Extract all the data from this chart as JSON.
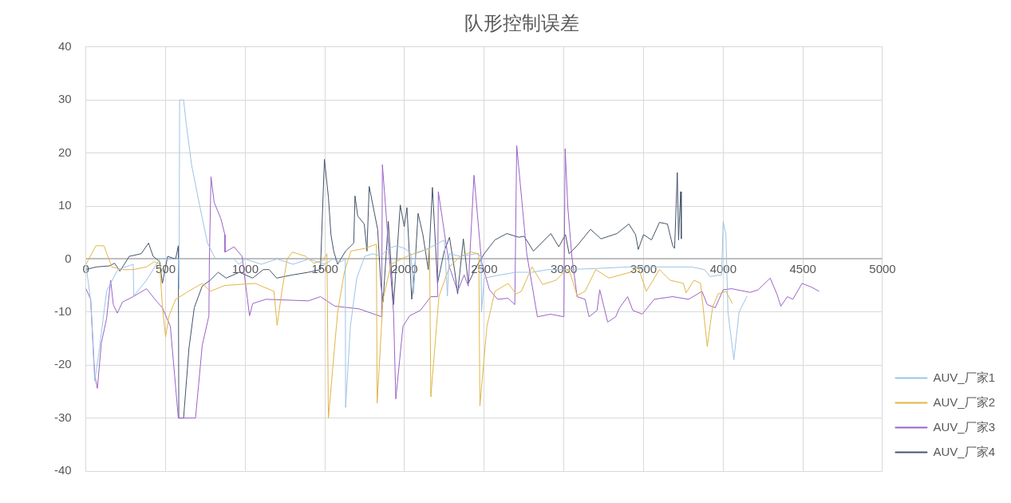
{
  "chart_data": {
    "type": "line",
    "title": "队形控制误差",
    "xlim": [
      0,
      5000
    ],
    "xticks": [
      0,
      500,
      1000,
      1500,
      2000,
      2500,
      3000,
      3500,
      4000,
      4500,
      5000
    ],
    "ylim": [
      -40,
      40
    ],
    "yticks": [
      -40,
      -30,
      -20,
      -10,
      0,
      10,
      20,
      30,
      40
    ],
    "grid": true,
    "legend": "right",
    "marker": "none",
    "line_style": "solid",
    "series": [
      {
        "name": "AUV_厂家1",
        "color": "#9dc3e6",
        "x": [
          0,
          30,
          55,
          80,
          130,
          200,
          297,
          300,
          380,
          463,
          580,
          585,
          588,
          613,
          630,
          663,
          713,
          763,
          813,
          880,
          930,
          960,
          1000,
          1100,
          1200,
          1300,
          1400,
          1500,
          1550,
          1600,
          1628,
          1630,
          1660,
          1700,
          1750,
          1800,
          1850,
          1900,
          1950,
          2000,
          2040,
          2057,
          2070,
          2150,
          2250,
          2269,
          2280,
          2350,
          2450,
          2480,
          2483,
          2500,
          2600,
          2700,
          2800,
          2900,
          3000,
          3200,
          3400,
          3600,
          3800,
          3883,
          3917,
          3990,
          4000,
          4017,
          4030,
          4067,
          4100,
          4150
        ],
        "values": [
          -1,
          -8,
          -23,
          -18,
          -6,
          -2,
          -1,
          -7,
          -4,
          0,
          0,
          -5.6,
          30,
          30,
          25.4,
          17.8,
          10.2,
          3,
          0,
          0,
          0,
          -1,
          0,
          -1,
          0,
          -1,
          0,
          -1,
          0,
          -0.5,
          0,
          -28,
          -12.7,
          -3.6,
          0.5,
          1,
          0.5,
          2,
          2.5,
          2,
          1,
          -6.6,
          1,
          2,
          3.6,
          -7,
          1,
          0.5,
          1,
          0.5,
          -10,
          -3.6,
          -3,
          -2.5,
          -2.5,
          -2,
          -2,
          -1.8,
          -1.5,
          -1.5,
          -1.5,
          -2,
          -3.3,
          -3,
          7.1,
          4.6,
          -10,
          -19,
          -10,
          -7
        ]
      },
      {
        "name": "AUV_厂家2",
        "color": "#e2b645",
        "x": [
          0,
          63,
          113,
          163,
          230,
          297,
          380,
          430,
          463,
          480,
          500,
          522,
          563,
          650,
          730,
          780,
          870,
          963,
          1063,
          1180,
          1200,
          1230,
          1263,
          1297,
          1380,
          1430,
          1488,
          1513,
          1522,
          1580,
          1622,
          1647,
          1664,
          1750,
          1823,
          1828,
          1865,
          1915,
          2000,
          2082,
          2157,
          2165,
          2216,
          2282,
          2350,
          2416,
          2466,
          2473,
          2517,
          2567,
          2650,
          2700,
          2733,
          2800,
          2867,
          2951,
          3000,
          3033,
          3083,
          3133,
          3200,
          3283,
          3417,
          3467,
          3517,
          3600,
          3667,
          3750,
          3767,
          3817,
          3858,
          3900,
          3933,
          3967,
          4017,
          4058
        ],
        "values": [
          -1,
          2.5,
          2.5,
          -1.5,
          -2,
          -2,
          -1.5,
          -0.5,
          -1,
          -9,
          -14.7,
          -10.7,
          -7.6,
          -6,
          -4.6,
          -6.1,
          -5,
          -4.8,
          -4.6,
          -6.1,
          -12.5,
          -6.1,
          0,
          1.3,
          0.5,
          -0.8,
          -0.3,
          1,
          -30,
          -10,
          -2.5,
          0,
          1.5,
          2,
          2.8,
          -27.2,
          -7.6,
          -1,
          0.3,
          1.3,
          2,
          -26,
          -7,
          -1.5,
          0.5,
          1.3,
          1,
          -27.7,
          -12.7,
          -6.1,
          -4.6,
          -6.6,
          -6.1,
          -1.5,
          -4.8,
          -4,
          -2.5,
          -2,
          -6.9,
          -6.1,
          -2,
          -3.6,
          -2.5,
          -1.5,
          -6.1,
          -2,
          -4,
          -4.6,
          -6.4,
          -4,
          -4.6,
          -16.5,
          -9.2,
          -6.6,
          -6.1,
          -8.4
        ]
      },
      {
        "name": "AUV_厂家3",
        "color": "#9b62c8",
        "x": [
          0,
          30,
          55,
          72,
          97,
          130,
          155,
          172,
          197,
          230,
          297,
          380,
          447,
          480,
          530,
          580,
          688,
          730,
          772,
          775,
          785,
          805,
          847,
          872,
          873,
          930,
          980,
          1027,
          1047,
          1130,
          1397,
          1472,
          1563,
          1714,
          1856,
          1861,
          1931,
          1945,
          1990,
          2032,
          2099,
          2165,
          2207,
          2212,
          2282,
          2333,
          2374,
          2400,
          2436,
          2483,
          2533,
          2584,
          2650,
          2692,
          2704,
          2767,
          2834,
          2917,
          3000,
          3008,
          3025,
          3050,
          3083,
          3133,
          3158,
          3208,
          3225,
          3275,
          3325,
          3350,
          3400,
          3433,
          3492,
          3567,
          3683,
          3783,
          3867,
          3900,
          3950,
          4000,
          4053,
          4170,
          4220,
          4295,
          4337,
          4362,
          4403,
          4437,
          4495,
          4553,
          4603
        ],
        "values": [
          -5.6,
          -7.6,
          -21.9,
          -24.4,
          -15.8,
          -11.2,
          -4,
          -8.6,
          -10.2,
          -8.1,
          -7.1,
          -5.6,
          -8.1,
          -9.2,
          -12.7,
          -30,
          -30,
          -16.3,
          -10.7,
          0,
          15.5,
          10.7,
          7.6,
          4.6,
          1.3,
          2.3,
          0.5,
          -10.7,
          -8.4,
          -7.6,
          -7.9,
          -7.1,
          -8.9,
          -9.4,
          -10.9,
          17.8,
          -10.2,
          -26.4,
          -12.7,
          -10.7,
          -9.7,
          -7.1,
          -7.1,
          12.7,
          -1.5,
          -6.1,
          -3,
          -5.1,
          15.8,
          -0.5,
          -5.8,
          -7.6,
          -7.4,
          -8.6,
          21.4,
          1,
          -10.9,
          -10.4,
          -10.9,
          20.8,
          9.7,
          0.5,
          -7.1,
          -7.6,
          -10.9,
          -9.7,
          -5.8,
          -11.9,
          -10.9,
          -9.2,
          -7.1,
          -9.7,
          -10.4,
          -7.6,
          -7.1,
          -7.6,
          -6.1,
          -8.6,
          -9.2,
          -5.8,
          -5.6,
          -6.3,
          -5.8,
          -3.6,
          -6.6,
          -8.9,
          -7.1,
          -7.6,
          -4.6,
          -5.3,
          -6.1
        ]
      },
      {
        "name": "AUV_厂家4",
        "color": "#44546a",
        "x": [
          0,
          63,
          147,
          180,
          213,
          272,
          347,
          393,
          422,
          463,
          480,
          513,
          563,
          580,
          583,
          613,
          647,
          680,
          730,
          780,
          830,
          880,
          963,
          1047,
          1113,
          1150,
          1197,
          1297,
          1397,
          1472,
          1497,
          1522,
          1538,
          1555,
          1580,
          1630,
          1681,
          1689,
          1706,
          1747,
          1764,
          1778,
          1831,
          1851,
          1865,
          1898,
          1931,
          1973,
          1998,
          2015,
          2045,
          2065,
          2085,
          2115,
          2149,
          2175,
          2207,
          2249,
          2282,
          2316,
          2333,
          2369,
          2400,
          2450,
          2500,
          2567,
          2642,
          2717,
          2750,
          2809,
          2918,
          2968,
          3010,
          3033,
          3083,
          3167,
          3233,
          3333,
          3408,
          3450,
          3467,
          3500,
          3550,
          3600,
          3650,
          3683,
          3695,
          3712,
          3720,
          3733,
          3737
        ],
        "values": [
          -2,
          -1.5,
          -1.3,
          -0.8,
          -2.3,
          0.5,
          1,
          3,
          0.5,
          -0.5,
          -4.6,
          0.5,
          0,
          2.5,
          -30,
          -30,
          -16.8,
          -9.2,
          -5.1,
          -4,
          -2.5,
          -3.6,
          -2.5,
          -3.6,
          -2,
          -2,
          -3.6,
          -3,
          -2.5,
          -2,
          18.8,
          11.7,
          4.6,
          1.5,
          -1,
          1.5,
          3,
          11.9,
          8.1,
          6.6,
          1.5,
          13.7,
          5.6,
          -4.6,
          -8.1,
          7.1,
          -8.6,
          10.2,
          6.1,
          9.7,
          -7.6,
          -1.5,
          8.6,
          4.6,
          -2,
          13.5,
          -4.6,
          1.5,
          4.1,
          -2.5,
          -6.6,
          3.8,
          -4.6,
          -1.5,
          1,
          3.6,
          4.8,
          4.1,
          4.3,
          1.5,
          4.8,
          2.3,
          4.6,
          1,
          2.5,
          5.6,
          3.8,
          4.8,
          6.6,
          4.6,
          1.8,
          4.6,
          3.6,
          6.9,
          6.6,
          2.5,
          2,
          16.3,
          3.6,
          12.7,
          3.8
        ]
      }
    ]
  }
}
